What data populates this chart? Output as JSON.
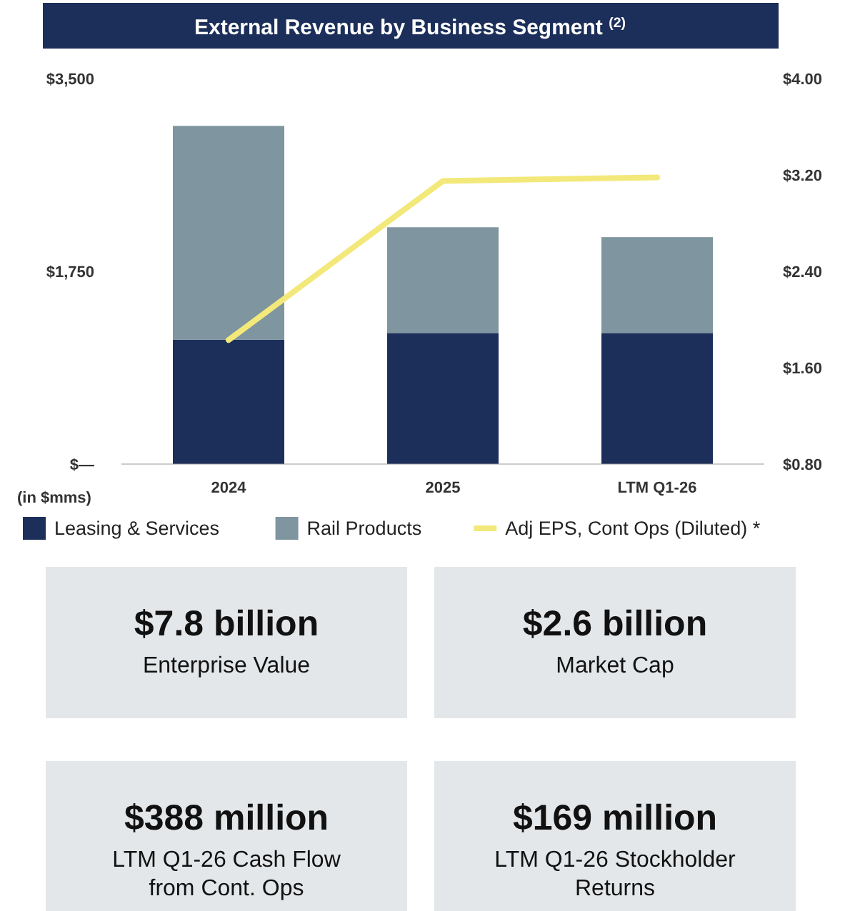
{
  "chart_data": [
    {
      "type": "bar",
      "title": "External Revenue by Business Segment $^{(2)}$",
      "categories": [
        "2024",
        "2025",
        "LTM Q1-26"
      ],
      "stacked": true,
      "series": [
        {
          "name": "Leasing & Services",
          "color": "#1c2f5a",
          "values": [
            1130,
            1190,
            1190
          ]
        },
        {
          "name": "Rail Products",
          "color": "#7f959f",
          "values": [
            1940,
            960,
            870
          ]
        },
        {
          "name": "Adj EPS, Cont Ops (Diluted) *",
          "type": "line",
          "axis": "y2",
          "color": "#f3e87a",
          "values": [
            1.83,
            3.15,
            3.18
          ]
        }
      ],
      "ylim": [
        0,
        3500
      ],
      "yticks": [
        {
          "value": 0,
          "label": "$—"
        },
        {
          "value": 1750,
          "label": "$1,750"
        },
        {
          "value": 3500,
          "label": "$3,500"
        }
      ],
      "y2lim": [
        0.8,
        4.0
      ],
      "y2ticks": [
        {
          "value": 0.8,
          "label": "$0.80"
        },
        {
          "value": 1.6,
          "label": "$1.60"
        },
        {
          "value": 2.4,
          "label": "$2.40"
        },
        {
          "value": 3.2,
          "label": "$3.20"
        },
        {
          "value": 4.0,
          "label": "$4.00"
        }
      ],
      "legend": "bottom",
      "annotations": [
        "(in $mms)"
      ]
    },
    {
      "type": "other",
      "title": "$7.8 billion",
      "subtitle": "Enterprise Value"
    },
    {
      "type": "other",
      "title": "$2.6 billion",
      "subtitle": "Market Cap"
    },
    {
      "type": "other",
      "title": "$388 million",
      "subtitle": "LTM Q1-26 Cash Flow from Cont. Ops"
    },
    {
      "type": "other",
      "title": "$169 million",
      "subtitle": "LTM Q1-26 Stockholder Returns"
    }
  ]
}
